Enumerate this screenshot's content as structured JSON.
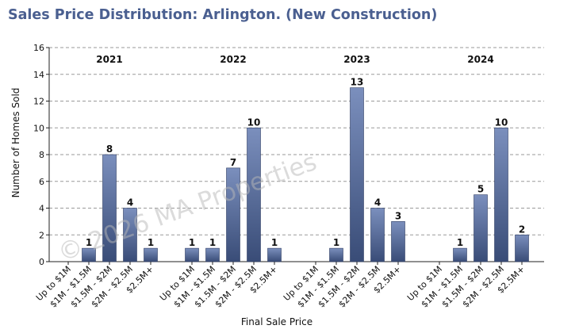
{
  "page_title": "Sales Price Distribution: Arlington. (New Construction)",
  "watermark": "© 2026 MA Properties",
  "chart_data": {
    "type": "bar",
    "xlabel": "Final Sale Price",
    "ylabel": "Number of Homes Sold",
    "ylim": [
      0,
      16
    ],
    "yticks": [
      0,
      2,
      4,
      6,
      8,
      10,
      12,
      14,
      16
    ],
    "grid": true,
    "bar_color": "#5a6f9e",
    "groups": [
      {
        "name": "2021",
        "categories": [
          "Up to $1M",
          "$1M - $1.5M",
          "$1.5M - $2M",
          "$2M - $2.5M",
          "$2.5M+"
        ],
        "values": [
          0,
          1,
          8,
          4,
          1
        ]
      },
      {
        "name": "2022",
        "categories": [
          "Up to $1M",
          "$1M - $1.5M",
          "$1.5M - $2M",
          "$2M - $2.5M",
          "$2.5M+"
        ],
        "values": [
          1,
          1,
          7,
          10,
          1
        ]
      },
      {
        "name": "2023",
        "categories": [
          "Up to $1M",
          "$1M - $1.5M",
          "$1.5M - $2M",
          "$2M - $2.5M",
          "$2.5M+"
        ],
        "values": [
          0,
          1,
          13,
          4,
          3
        ]
      },
      {
        "name": "2024",
        "categories": [
          "Up to $1M",
          "$1M - $1.5M",
          "$1.5M - $2M",
          "$2M - $2.5M",
          "$2.5M+"
        ],
        "values": [
          0,
          1,
          5,
          10,
          2
        ]
      }
    ]
  }
}
